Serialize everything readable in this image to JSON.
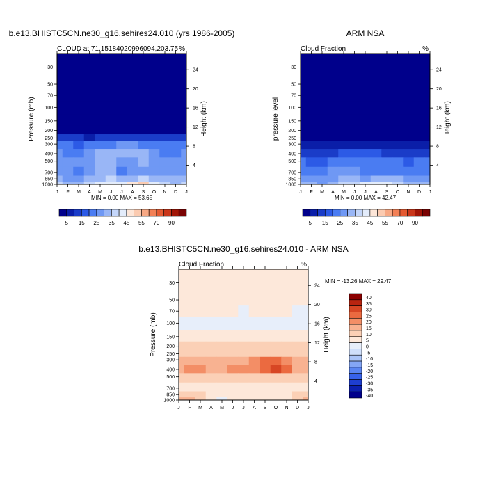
{
  "colors": {
    "abs_palette": [
      "#00008b",
      "#0a1ea8",
      "#1a3cc8",
      "#2c5ae6",
      "#4a7cf2",
      "#6f98f4",
      "#99b6f6",
      "#c4d6fa",
      "#e3ecfb",
      "#fde6d8",
      "#fbcbb1",
      "#f7a884",
      "#f28056",
      "#e45a32",
      "#c9361a",
      "#a11507",
      "#7a0303"
    ],
    "diff_palette": [
      "#00008b",
      "#0b1fae",
      "#1e3ed0",
      "#3762ea",
      "#5a85f2",
      "#84a6f5",
      "#aac4f8",
      "#cfdffb",
      "#e7eefa",
      "#fde8da",
      "#fbd0b6",
      "#f8b291",
      "#f38e66",
      "#eb6a40",
      "#d74624",
      "#b92410",
      "#8b0000"
    ]
  },
  "page": {
    "left_title": "b.e13.BHISTC5CN.ne30_g16.sehires24.010 (yrs 1986-2005)",
    "right_title": "ARM NSA",
    "bottom_title": "b.e13.BHISTC5CN.ne30_g16.sehires24.010 - ARM NSA"
  },
  "chart_data": [
    {
      "type": "heatmap",
      "subtitle": "CLOUD at 71.151840209960​94,203.75",
      "subtitle_text": "CLOUD at 71.15184020996094,203.75",
      "units": "%",
      "ylabel": "Pressure (mb)",
      "ylabel_right": "Height (km)",
      "x": [
        "J",
        "F",
        "M",
        "A",
        "M",
        "J",
        "J",
        "A",
        "S",
        "O",
        "N",
        "D",
        "J"
      ],
      "y_ticks": [
        "30",
        "50",
        "70",
        "100",
        "150",
        "200",
        "250",
        "300",
        "400",
        "500",
        "700",
        "850",
        "1000"
      ],
      "y_ticks_right": [
        "24",
        "20",
        "16",
        "12",
        "8",
        "4"
      ],
      "min_max_text": "MIN =   0.00 MAX =  53.65",
      "colorbar_labels": [
        "5",
        "15",
        "25",
        "35",
        "45",
        "55",
        "70",
        "90"
      ],
      "ylim": [
        1000,
        20
      ],
      "values": [
        [
          0,
          0,
          0,
          0,
          0,
          0,
          0,
          0,
          0,
          0,
          0,
          0,
          0
        ],
        [
          0,
          0,
          0,
          0,
          0,
          0,
          0,
          0,
          0,
          0,
          0,
          0,
          0
        ],
        [
          0,
          0,
          0,
          0,
          0,
          0,
          0,
          0,
          0,
          0,
          0,
          0,
          0
        ],
        [
          0,
          0,
          0,
          0,
          0,
          0,
          0,
          0,
          0,
          0,
          0,
          0,
          0
        ],
        [
          0,
          0,
          0,
          0,
          0,
          0,
          0,
          0,
          0,
          0,
          0,
          0,
          0
        ],
        [
          4,
          4,
          3,
          3,
          3,
          4,
          4,
          4,
          3,
          3,
          3,
          4,
          4
        ],
        [
          12,
          11,
          10,
          9,
          11,
          12,
          12,
          12,
          11,
          11,
          11,
          12,
          12
        ],
        [
          22,
          20,
          18,
          20,
          22,
          24,
          26,
          26,
          24,
          22,
          20,
          22,
          22
        ],
        [
          26,
          24,
          22,
          26,
          30,
          32,
          34,
          34,
          30,
          26,
          22,
          24,
          26
        ],
        [
          28,
          26,
          26,
          28,
          32,
          30,
          28,
          28,
          30,
          28,
          26,
          26,
          28
        ],
        [
          26,
          26,
          24,
          28,
          30,
          30,
          24,
          26,
          28,
          28,
          26,
          26,
          26
        ],
        [
          30,
          28,
          28,
          30,
          34,
          36,
          30,
          34,
          36,
          34,
          30,
          30,
          30
        ],
        [
          36,
          34,
          32,
          36,
          40,
          42,
          44,
          48,
          53,
          44,
          36,
          34,
          36
        ]
      ]
    },
    {
      "type": "heatmap",
      "subtitle": "Cloud Fraction",
      "units": "%",
      "ylabel": "pressure level",
      "ylabel_right": "Height (km)",
      "x": [
        "J",
        "F",
        "M",
        "A",
        "M",
        "J",
        "J",
        "A",
        "S",
        "O",
        "N",
        "D",
        "J"
      ],
      "y_ticks": [
        "30",
        "50",
        "70",
        "100",
        "150",
        "200",
        "250",
        "300",
        "400",
        "500",
        "700",
        "850",
        "1000"
      ],
      "y_ticks_right": [
        "24",
        "20",
        "16",
        "12",
        "8",
        "4"
      ],
      "min_max_text": "MIN =   0.00 MAX =  42.47",
      "colorbar_labels": [
        "5",
        "15",
        "25",
        "35",
        "45",
        "55",
        "70",
        "90"
      ],
      "ylim": [
        1000,
        20
      ],
      "values": [
        [
          0,
          0,
          0,
          0,
          0,
          0,
          0,
          0,
          0,
          0,
          0,
          0,
          0
        ],
        [
          0,
          0,
          0,
          0,
          0,
          0,
          0,
          0,
          0,
          0,
          0,
          0,
          0
        ],
        [
          0,
          0,
          0,
          0,
          0,
          0,
          0,
          0,
          0,
          0,
          0,
          0,
          0
        ],
        [
          0,
          0,
          0,
          0,
          0,
          0,
          0,
          0,
          0,
          0,
          0,
          0,
          0
        ],
        [
          0,
          0,
          0,
          0,
          0,
          0,
          0,
          0,
          0,
          0,
          0,
          0,
          0
        ],
        [
          0,
          0,
          0,
          0,
          0,
          0,
          0,
          0,
          0,
          0,
          0,
          0,
          0
        ],
        [
          4,
          3,
          3,
          3,
          3,
          4,
          4,
          4,
          3,
          3,
          3,
          4,
          4
        ],
        [
          8,
          8,
          7,
          7,
          7,
          8,
          9,
          9,
          8,
          8,
          7,
          8,
          8
        ],
        [
          14,
          12,
          12,
          14,
          16,
          16,
          18,
          16,
          14,
          14,
          12,
          14,
          14
        ],
        [
          20,
          18,
          18,
          22,
          24,
          22,
          24,
          22,
          20,
          20,
          18,
          20,
          20
        ],
        [
          24,
          22,
          22,
          26,
          26,
          26,
          22,
          24,
          24,
          24,
          22,
          24,
          24
        ],
        [
          28,
          26,
          26,
          28,
          30,
          30,
          28,
          30,
          32,
          30,
          28,
          28,
          28
        ],
        [
          32,
          30,
          28,
          32,
          36,
          38,
          40,
          42,
          40,
          36,
          32,
          30,
          32
        ]
      ]
    },
    {
      "type": "heatmap",
      "subtitle": "Cloud Fraction",
      "units": "%",
      "ylabel": "Pressure (mb)",
      "ylabel_right": "Height (km)",
      "x": [
        "J",
        "F",
        "M",
        "A",
        "M",
        "J",
        "J",
        "A",
        "S",
        "O",
        "N",
        "D",
        "J"
      ],
      "y_ticks": [
        "30",
        "50",
        "70",
        "100",
        "150",
        "200",
        "250",
        "300",
        "400",
        "500",
        "700",
        "850",
        "1000"
      ],
      "y_ticks_right": [
        "24",
        "20",
        "16",
        "12",
        "8",
        "4"
      ],
      "min_max_text": "MIN = -13.26 MAX =  29.47",
      "colorbar_labels": [
        "40",
        "35",
        "30",
        "25",
        "20",
        "15",
        "10",
        "5",
        "0",
        "-5",
        "-10",
        "-15",
        "-20",
        "-25",
        "-30",
        "-35",
        "-40"
      ],
      "ylim": [
        1000,
        20
      ],
      "values": [
        [
          2,
          2,
          2,
          2,
          2,
          2,
          2,
          2,
          2,
          2,
          2,
          2,
          2
        ],
        [
          2,
          2,
          2,
          2,
          2,
          2,
          2,
          2,
          2,
          2,
          2,
          2,
          2
        ],
        [
          1,
          1,
          2,
          2,
          2,
          1,
          -1,
          1,
          2,
          2,
          1,
          -1,
          -1
        ],
        [
          -1,
          -1,
          -2,
          -3,
          -3,
          -3,
          -2,
          -3,
          -2,
          -2,
          -2,
          -1,
          -1
        ],
        [
          3,
          3,
          3,
          3,
          3,
          3,
          3,
          3,
          3,
          3,
          3,
          3,
          3
        ],
        [
          5,
          5,
          5,
          5,
          5,
          5,
          5,
          5,
          5,
          5,
          5,
          5,
          5
        ],
        [
          8,
          8,
          8,
          8,
          8,
          8,
          8,
          8,
          8,
          8,
          8,
          8,
          8
        ],
        [
          12,
          14,
          12,
          10,
          12,
          14,
          14,
          16,
          20,
          20,
          16,
          12,
          12
        ],
        [
          14,
          16,
          16,
          14,
          14,
          16,
          16,
          18,
          22,
          26,
          20,
          14,
          14
        ],
        [
          8,
          8,
          8,
          8,
          8,
          8,
          8,
          8,
          8,
          8,
          8,
          8,
          8
        ],
        [
          3,
          4,
          3,
          3,
          3,
          3,
          3,
          3,
          3,
          3,
          3,
          3,
          3
        ],
        [
          6,
          8,
          6,
          4,
          4,
          4,
          4,
          4,
          4,
          4,
          4,
          6,
          6
        ],
        [
          10,
          12,
          8,
          4,
          -2,
          4,
          4,
          4,
          4,
          4,
          4,
          8,
          10
        ]
      ]
    }
  ]
}
